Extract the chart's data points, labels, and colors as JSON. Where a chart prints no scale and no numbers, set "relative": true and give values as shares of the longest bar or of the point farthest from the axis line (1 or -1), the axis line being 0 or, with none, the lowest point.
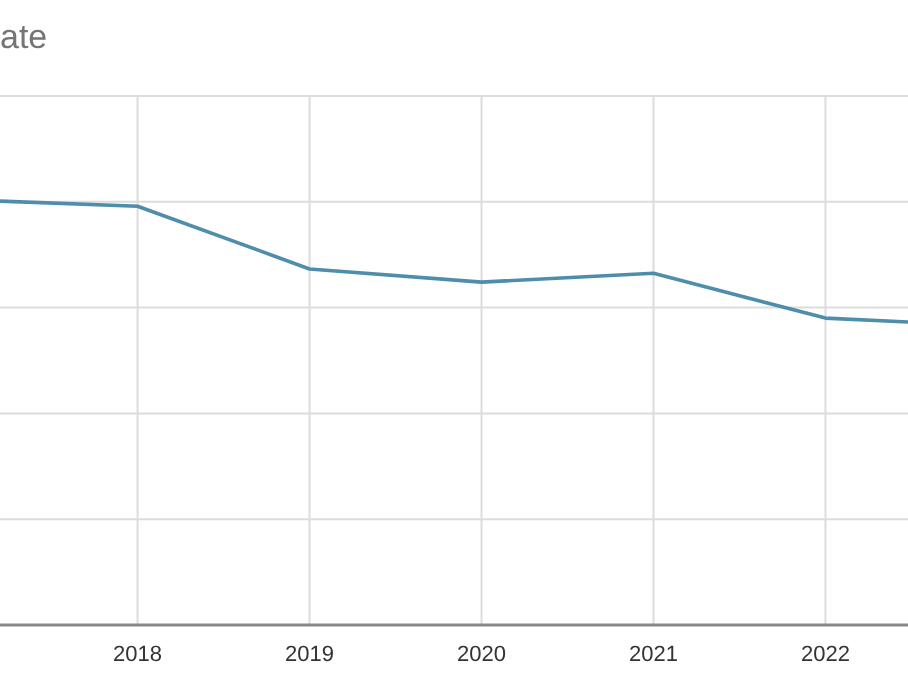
{
  "chart_data": {
    "type": "line",
    "title": "ate",
    "relative": true,
    "x": [
      2017.2,
      2018,
      2019,
      2020,
      2021,
      2022,
      2022.48
    ],
    "xlim": [
      2017.2,
      2022.48
    ],
    "xticks": [
      2018,
      2019,
      2020,
      2021,
      2022
    ],
    "series": [
      {
        "color": "#4e8dab",
        "values": [
          1.0,
          0.988,
          0.84,
          0.809,
          0.83,
          0.724,
          0.715
        ]
      }
    ],
    "grid": true,
    "marker": "none",
    "line_style": "solid"
  }
}
